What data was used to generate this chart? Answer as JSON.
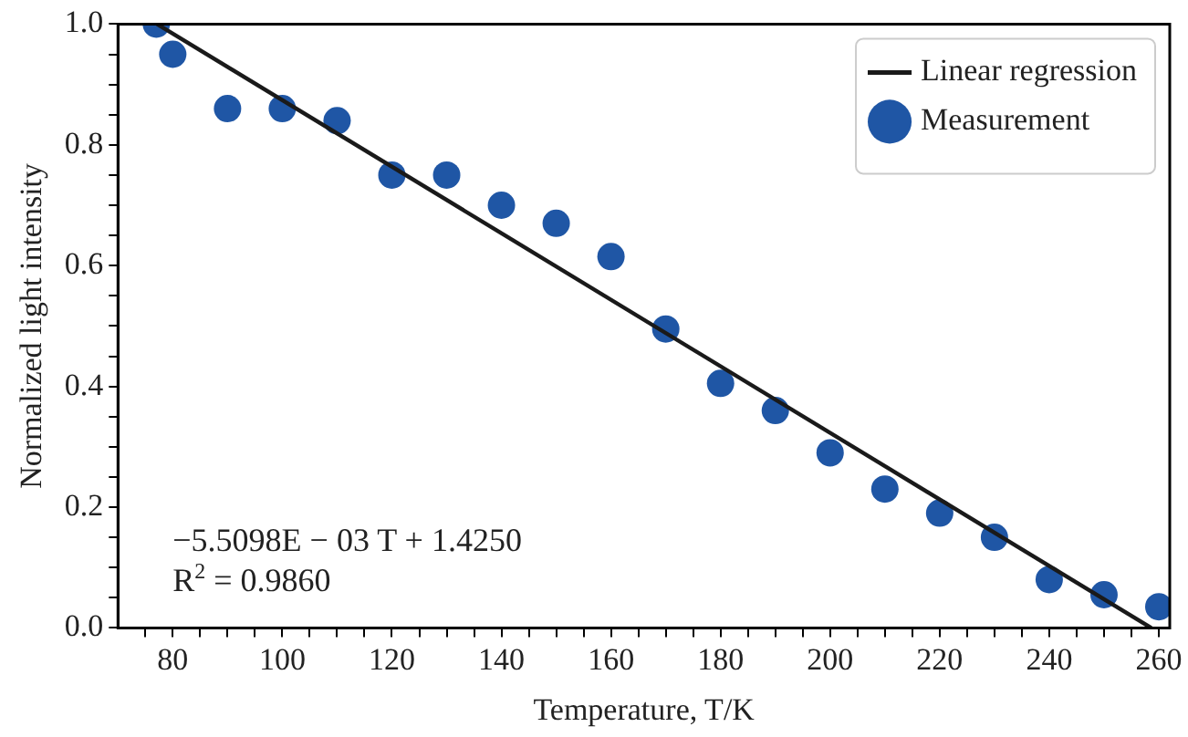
{
  "chart_data": {
    "type": "scatter",
    "xlabel": "Temperature, T/K",
    "ylabel": "Normalized light intensity",
    "series": [
      {
        "name": "Linear regression",
        "type": "line",
        "color": "#1a1a1a",
        "x": [
          77.13,
          258.63
        ],
        "values": [
          1.0,
          0.0
        ],
        "marker": "none",
        "line_style": "solid"
      },
      {
        "name": "Measurement",
        "color": "#1f56a5",
        "marker": "circle",
        "x": [
          77,
          80,
          90,
          100,
          110,
          120,
          130,
          140,
          150,
          160,
          170,
          180,
          190,
          200,
          210,
          220,
          230,
          240,
          250,
          260
        ],
        "values": [
          1.0,
          0.95,
          0.86,
          0.86,
          0.84,
          0.75,
          0.75,
          0.7,
          0.67,
          0.615,
          0.495,
          0.405,
          0.36,
          0.29,
          0.23,
          0.19,
          0.15,
          0.08,
          0.055,
          0.035
        ]
      }
    ],
    "xlim": [
      70,
      262
    ],
    "ylim": [
      0,
      1
    ],
    "xticks": [
      {
        "value": 75,
        "label": null
      },
      80,
      {
        "value": 85,
        "label": null
      },
      {
        "value": 90,
        "label": null
      },
      {
        "value": 95,
        "label": null
      },
      100,
      {
        "value": 105,
        "label": null
      },
      {
        "value": 110,
        "label": null
      },
      {
        "value": 115,
        "label": null
      },
      120,
      {
        "value": 125,
        "label": null
      },
      {
        "value": 130,
        "label": null
      },
      {
        "value": 135,
        "label": null
      },
      140,
      {
        "value": 145,
        "label": null
      },
      {
        "value": 150,
        "label": null
      },
      {
        "value": 155,
        "label": null
      },
      160,
      {
        "value": 165,
        "label": null
      },
      {
        "value": 170,
        "label": null
      },
      {
        "value": 175,
        "label": null
      },
      180,
      {
        "value": 185,
        "label": null
      },
      {
        "value": 190,
        "label": null
      },
      {
        "value": 195,
        "label": null
      },
      200,
      {
        "value": 205,
        "label": null
      },
      {
        "value": 210,
        "label": null
      },
      {
        "value": 215,
        "label": null
      },
      220,
      {
        "value": 225,
        "label": null
      },
      {
        "value": 230,
        "label": null
      },
      {
        "value": 235,
        "label": null
      },
      240,
      {
        "value": 245,
        "label": null
      },
      {
        "value": 250,
        "label": null
      },
      {
        "value": 255,
        "label": null
      },
      260
    ],
    "yticks": [
      {
        "value": 0,
        "label": "0.0"
      },
      {
        "value": 0.05,
        "label": null
      },
      {
        "value": 0.1,
        "label": null
      },
      {
        "value": 0.15,
        "label": null
      },
      {
        "value": 0.2,
        "label": "0.2"
      },
      {
        "value": 0.25,
        "label": null
      },
      {
        "value": 0.3,
        "label": null
      },
      {
        "value": 0.35,
        "label": null
      },
      {
        "value": 0.4,
        "label": "0.4"
      },
      {
        "value": 0.45,
        "label": null
      },
      {
        "value": 0.5,
        "label": null
      },
      {
        "value": 0.55,
        "label": null
      },
      {
        "value": 0.6,
        "label": "0.6"
      },
      {
        "value": 0.65,
        "label": null
      },
      {
        "value": 0.7,
        "label": null
      },
      {
        "value": 0.75,
        "label": null
      },
      {
        "value": 0.8,
        "label": "0.8"
      },
      {
        "value": 0.85,
        "label": null
      },
      {
        "value": 0.9,
        "label": null
      },
      {
        "value": 0.95,
        "label": null
      },
      {
        "value": 1.0,
        "label": "1.0"
      }
    ],
    "annotations": [
      "−5.5098E − 03 T + 1.4250",
      "R$^{2}$ = 0.9860"
    ],
    "legend": "top right",
    "grid": false
  }
}
